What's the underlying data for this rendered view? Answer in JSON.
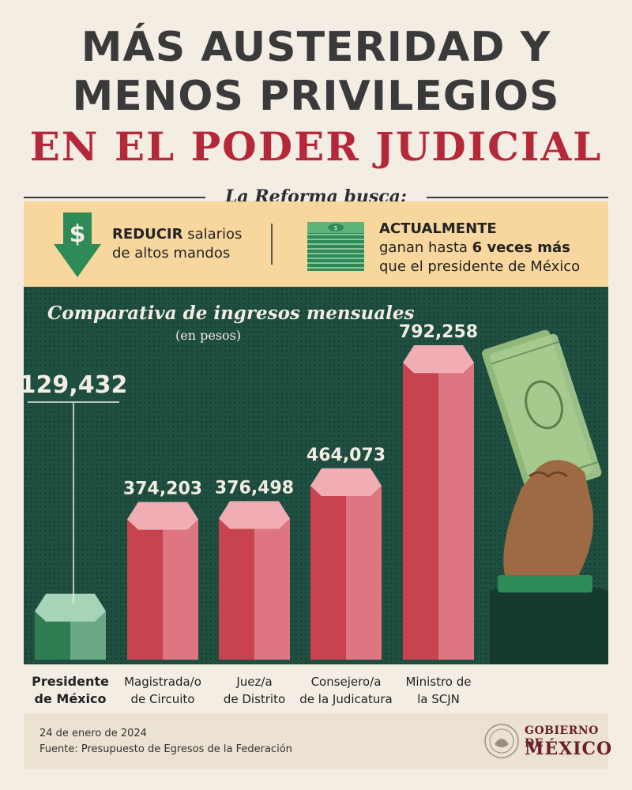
{
  "header": {
    "title_line1": "MÁS AUSTERIDAD Y",
    "title_line2": "MENOS PRIVILEGIOS",
    "title_line3": "EN EL PODER JUDICIAL"
  },
  "reforma": {
    "label": "La Reforma busca:",
    "reducir_bold": "REDUCIR",
    "reducir_rest": " salarios",
    "reducir_line2": "de altos mandos",
    "actual_bold": "ACTUALMENTE",
    "actual_line2_pre": "ganan hasta ",
    "actual_line2_bold": "6 veces más",
    "actual_line3": "que el presidente de México"
  },
  "chart_data": {
    "type": "bar",
    "title": "Comparativa de ingresos mensuales",
    "subtitle": "(en pesos)",
    "categories": [
      "Presidente de México",
      "Magistrada/o de Circuito",
      "Juez/a de Distrito",
      "Consejero/a de la Judicatura",
      "Ministro de la SCJN"
    ],
    "category_lines": [
      [
        "Presidente",
        "de México"
      ],
      [
        "Magistrada/o",
        "de Circuito"
      ],
      [
        "Juez/a",
        "de Distrito"
      ],
      [
        "Consejero/a",
        "de la Judicatura"
      ],
      [
        "Ministro de",
        "la SCJN"
      ]
    ],
    "values": [
      129432,
      374203,
      376498,
      464073,
      792258
    ],
    "value_labels": [
      "129,432",
      "374,203",
      "376,498",
      "464,073",
      "792,258"
    ],
    "highlight_colors": [
      "#2e7d53",
      "#c9424f",
      "#c9424f",
      "#c9424f",
      "#c9424f"
    ],
    "grid": false
  },
  "footer": {
    "date": "24 de enero de 2024",
    "source": "Fuente: Presupuesto de Egresos de la Federación",
    "gob_line1": "GOBIERNO DE",
    "gob_line2": "MÉXICO"
  },
  "icons": {
    "dollar_arrow": "dollar-down-arrow-icon",
    "money_stack": "money-stack-icon",
    "hand_money": "hand-holding-money-icon",
    "seal": "government-seal-icon"
  }
}
